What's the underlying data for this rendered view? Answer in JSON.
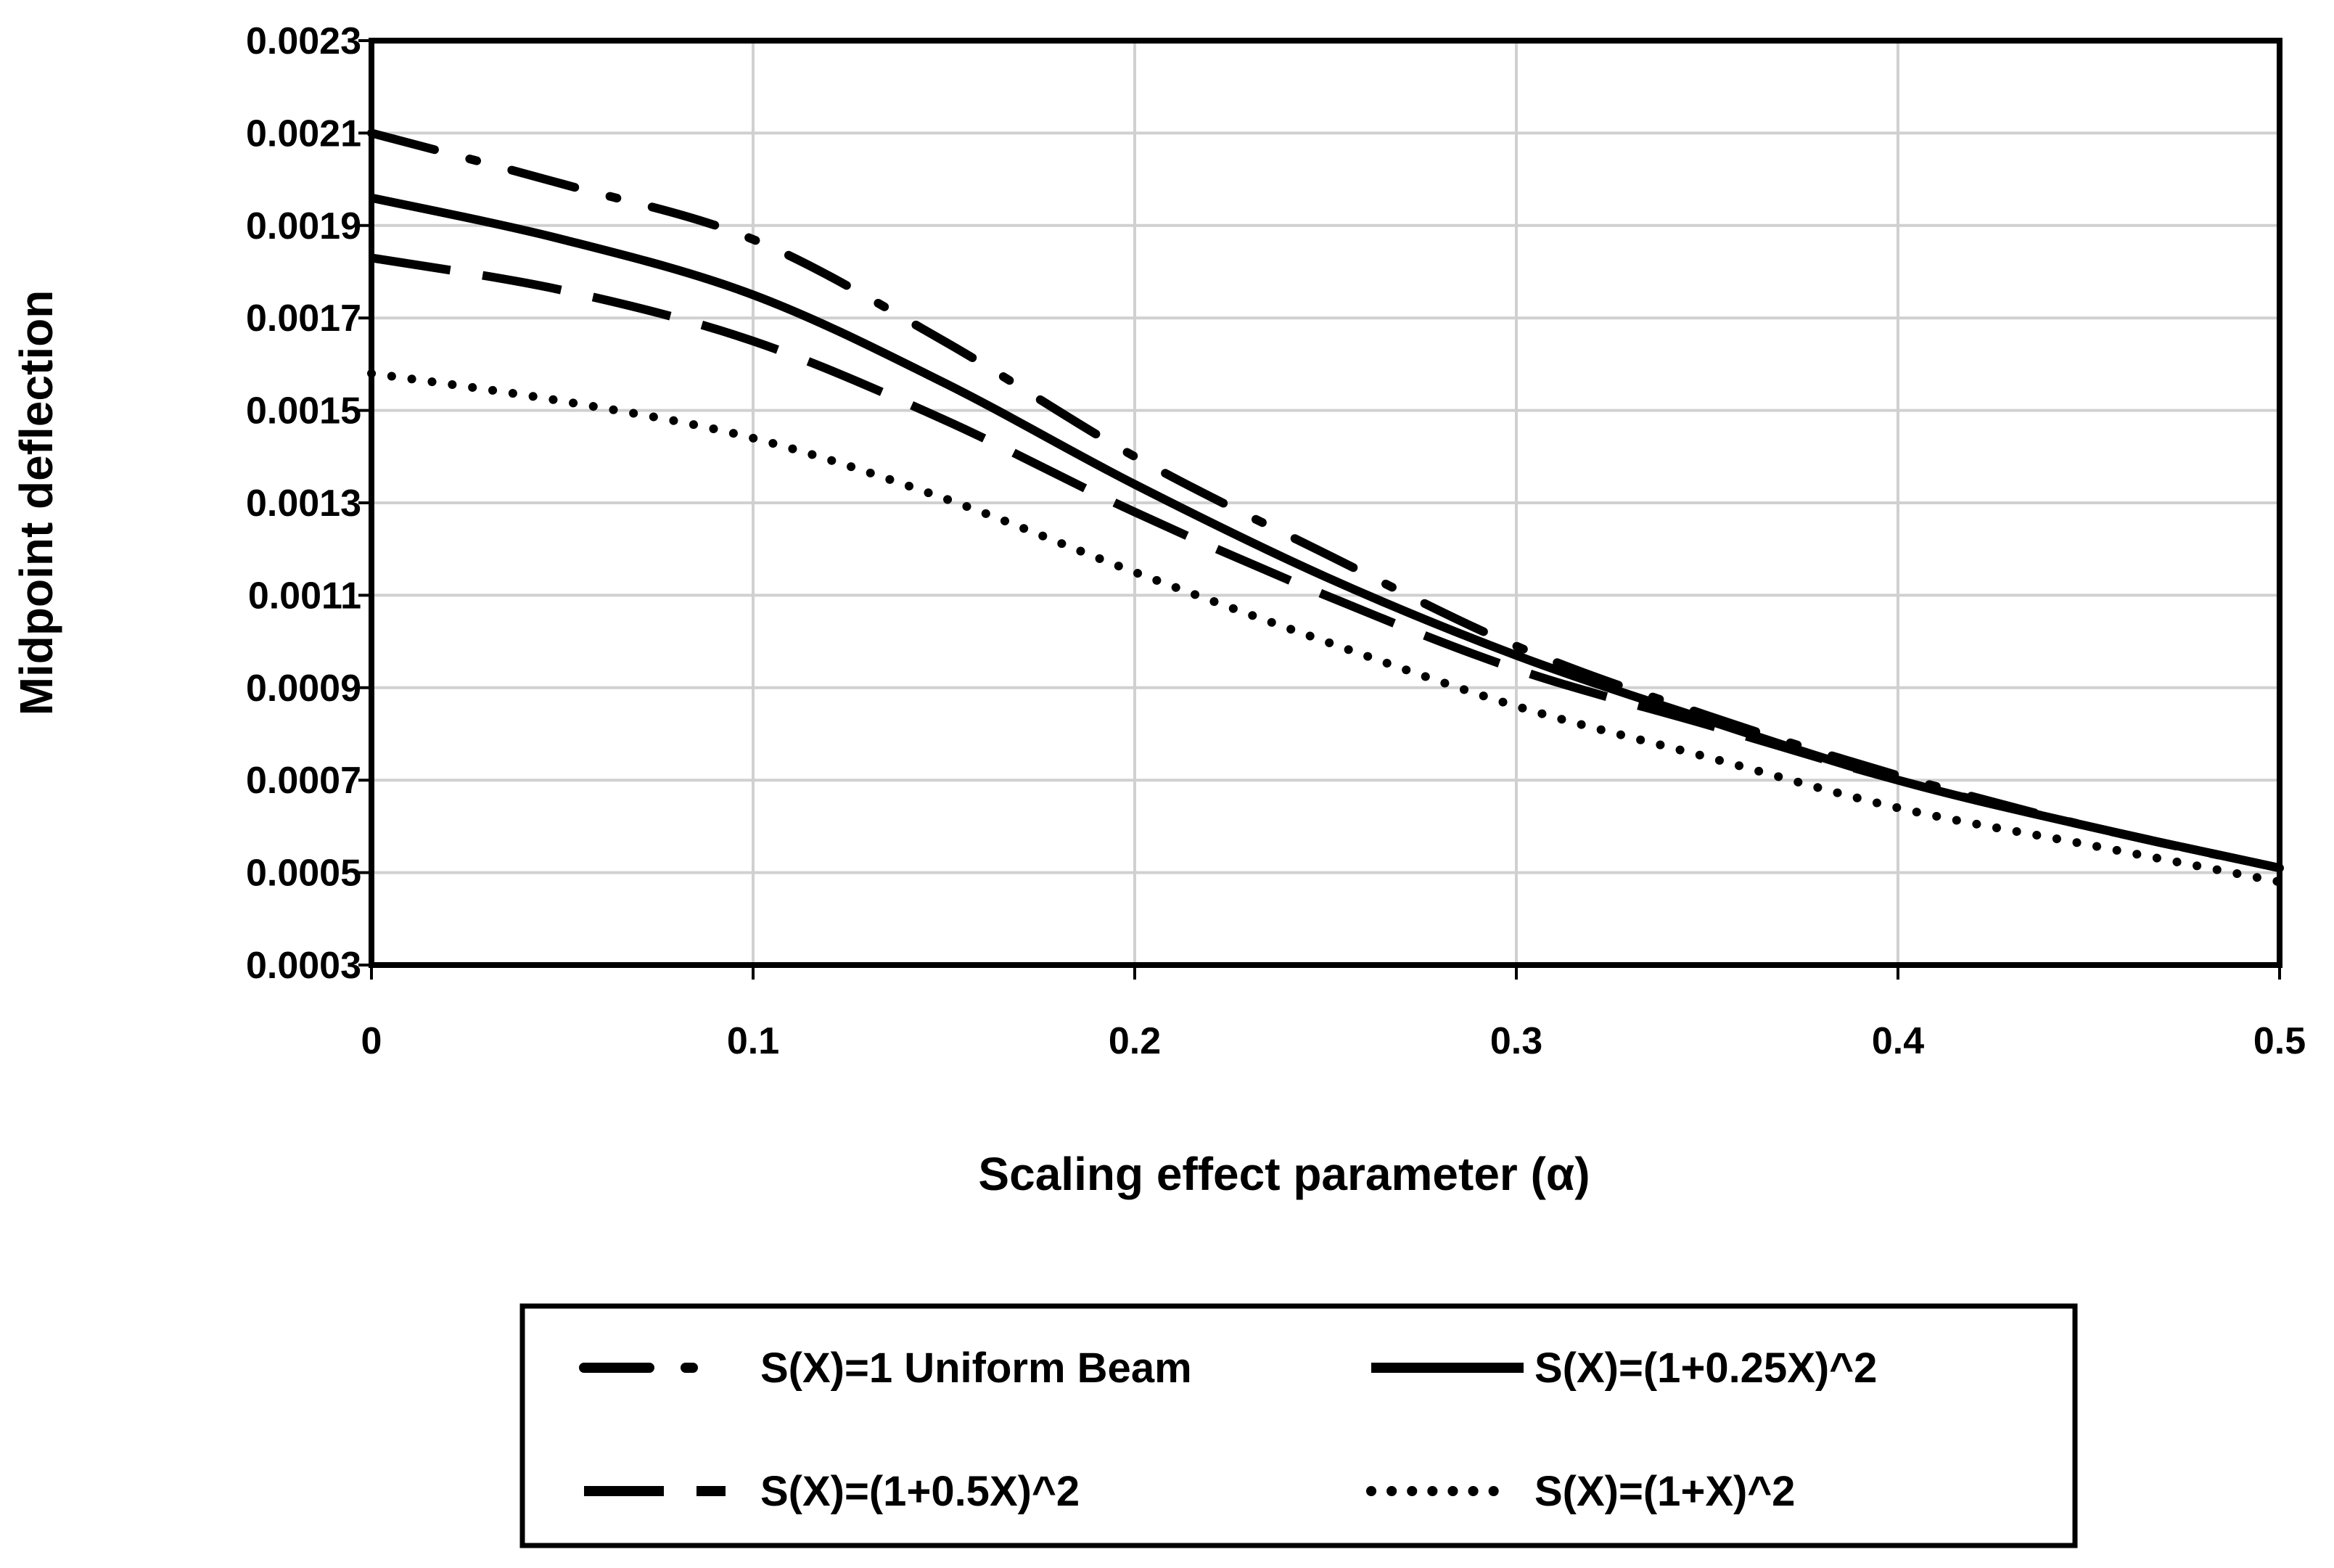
{
  "chart_data": {
    "type": "line",
    "title": "",
    "xlabel": "Scaling effect parameter  (α)",
    "ylabel": "Midpoint deflection",
    "xlim": [
      0,
      0.5
    ],
    "ylim": [
      0.0003,
      0.0023
    ],
    "x_ticks": [
      0,
      0.1,
      0.2,
      0.3,
      0.4,
      0.5
    ],
    "x_tick_labels": [
      "0",
      "0.1",
      "0.2",
      "0.3",
      "0.4",
      "0.5"
    ],
    "y_ticks": [
      0.0003,
      0.0005,
      0.0007,
      0.0009,
      0.0011,
      0.0013,
      0.0015,
      0.0017,
      0.0019,
      0.0021,
      0.0023
    ],
    "y_tick_labels": [
      "0.0003",
      "0.0005",
      "0.0007",
      "0.0009",
      "0.0011",
      "0.0013",
      "0.0015",
      "0.0017",
      "0.0019",
      "0.0021",
      "0.0023"
    ],
    "grid": true,
    "legend_position": "bottom",
    "x": [
      0,
      0.05,
      0.1,
      0.15,
      0.2,
      0.25,
      0.3,
      0.35,
      0.4,
      0.45,
      0.5
    ],
    "series": [
      {
        "name": "S(X)=1  Uniform Beam",
        "style": "dash-dot",
        "values": [
          0.0021,
          0.00199,
          0.00187,
          0.00165,
          0.0014,
          0.00119,
          0.00099,
          0.00084,
          0.00071,
          0.0006,
          0.00051
        ]
      },
      {
        "name": "S(X)=(1+0.25X)^2",
        "style": "solid",
        "values": [
          0.00196,
          0.00187,
          0.00175,
          0.00156,
          0.00134,
          0.00114,
          0.00097,
          0.00083,
          0.0007,
          0.0006,
          0.00051
        ]
      },
      {
        "name": "S(X)=(1+0.5X)^2",
        "style": "long-dash",
        "values": [
          0.00183,
          0.00176,
          0.00165,
          0.00148,
          0.00128,
          0.0011,
          0.00094,
          0.00082,
          0.0007,
          0.0006,
          0.00051
        ]
      },
      {
        "name": "S(X)=(1+X)^2",
        "style": "dotted",
        "values": [
          0.00158,
          0.00152,
          0.00144,
          0.00131,
          0.00115,
          0.001,
          0.00086,
          0.00075,
          0.00064,
          0.00056,
          0.00048
        ]
      }
    ]
  }
}
